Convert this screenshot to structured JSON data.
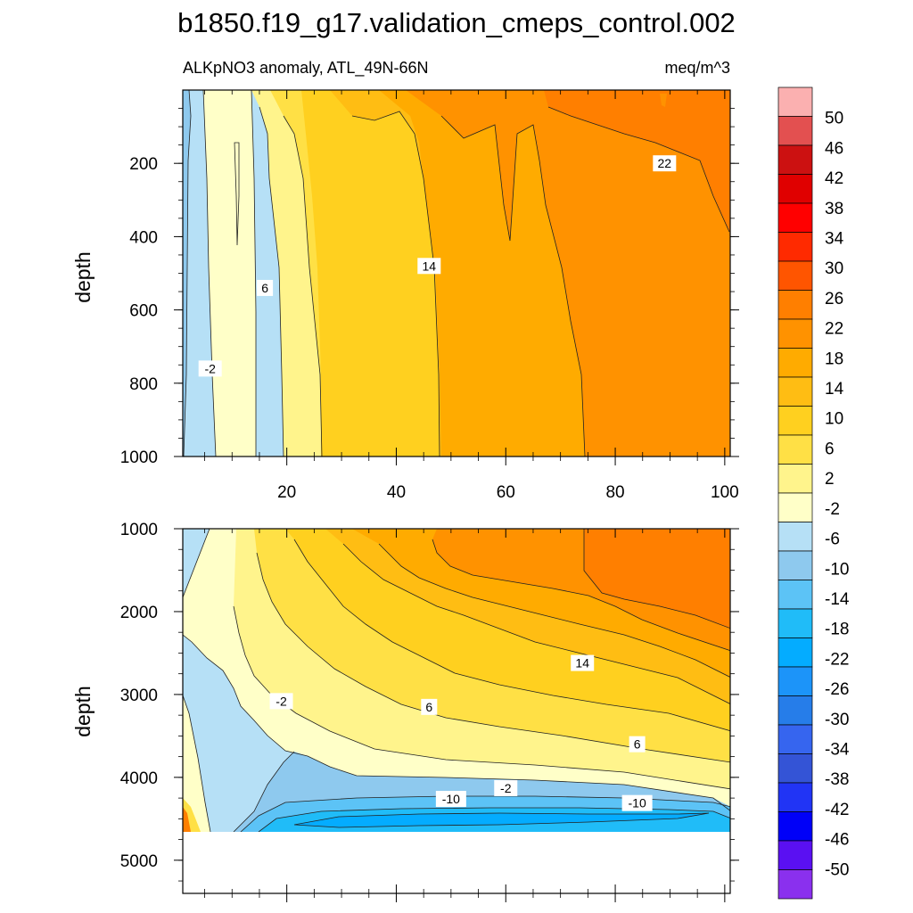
{
  "chart_data": {
    "type": "heatmap",
    "title": "b1850.f19_g17.validation_cmeps_control.002",
    "variable_label": "ALKpNO3 anomaly, ATL_49N-66N",
    "units": "meq/m^3",
    "ylabel": "depth",
    "x_ticks": [
      "20",
      "40",
      "60",
      "80",
      "100"
    ],
    "xlim": [
      1,
      101
    ],
    "upper_panel": {
      "ylim": [
        0,
        1000
      ],
      "y_ticks": [
        "200",
        "400",
        "600",
        "800",
        "1000"
      ],
      "contour_labels": [
        {
          "text": "22",
          "x": 89,
          "y": 200
        },
        {
          "text": "14",
          "x": 46,
          "y": 480
        },
        {
          "text": "6",
          "x": 16,
          "y": 540
        },
        {
          "text": "-2",
          "x": 6,
          "y": 760
        }
      ]
    },
    "lower_panel": {
      "ylim": [
        1000,
        5400
      ],
      "y_ticks": [
        "1000",
        "2000",
        "3000",
        "4000",
        "5000"
      ],
      "data_bottom_depth": 4620,
      "contour_labels": [
        {
          "text": "14",
          "x": 74,
          "y": 2620
        },
        {
          "text": "-2",
          "x": 19,
          "y": 3080
        },
        {
          "text": "6",
          "x": 46,
          "y": 3150
        },
        {
          "text": "6",
          "x": 84,
          "y": 3600
        },
        {
          "text": "-2",
          "x": 60,
          "y": 4130
        },
        {
          "text": "-10",
          "x": 50,
          "y": 4260
        },
        {
          "text": "-10",
          "x": 84,
          "y": 4310
        }
      ]
    },
    "colorbar": {
      "labels": [
        "50",
        "46",
        "42",
        "38",
        "34",
        "30",
        "26",
        "22",
        "18",
        "14",
        "10",
        "6",
        "2",
        "-2",
        "-6",
        "-10",
        "-14",
        "-18",
        "-22",
        "-26",
        "-30",
        "-34",
        "-38",
        "-42",
        "-46",
        "-50"
      ],
      "colors": [
        "#fbb0b0",
        "#e35050",
        "#cc1111",
        "#e00000",
        "#ff0000",
        "#ff2a00",
        "#ff5500",
        "#ff7f00",
        "#ff9200",
        "#ffab00",
        "#ffbd13",
        "#ffd01f",
        "#ffe045",
        "#fff48c",
        "#ffffc8",
        "#b6e0f6",
        "#8ec9ee",
        "#5cc3f6",
        "#20bcf8",
        "#04acff",
        "#1c94f9",
        "#267de9",
        "#3665ef",
        "#3454d6",
        "#2134f5",
        "#0000f8",
        "#5a10f2",
        "#8a30ee"
      ]
    }
  }
}
